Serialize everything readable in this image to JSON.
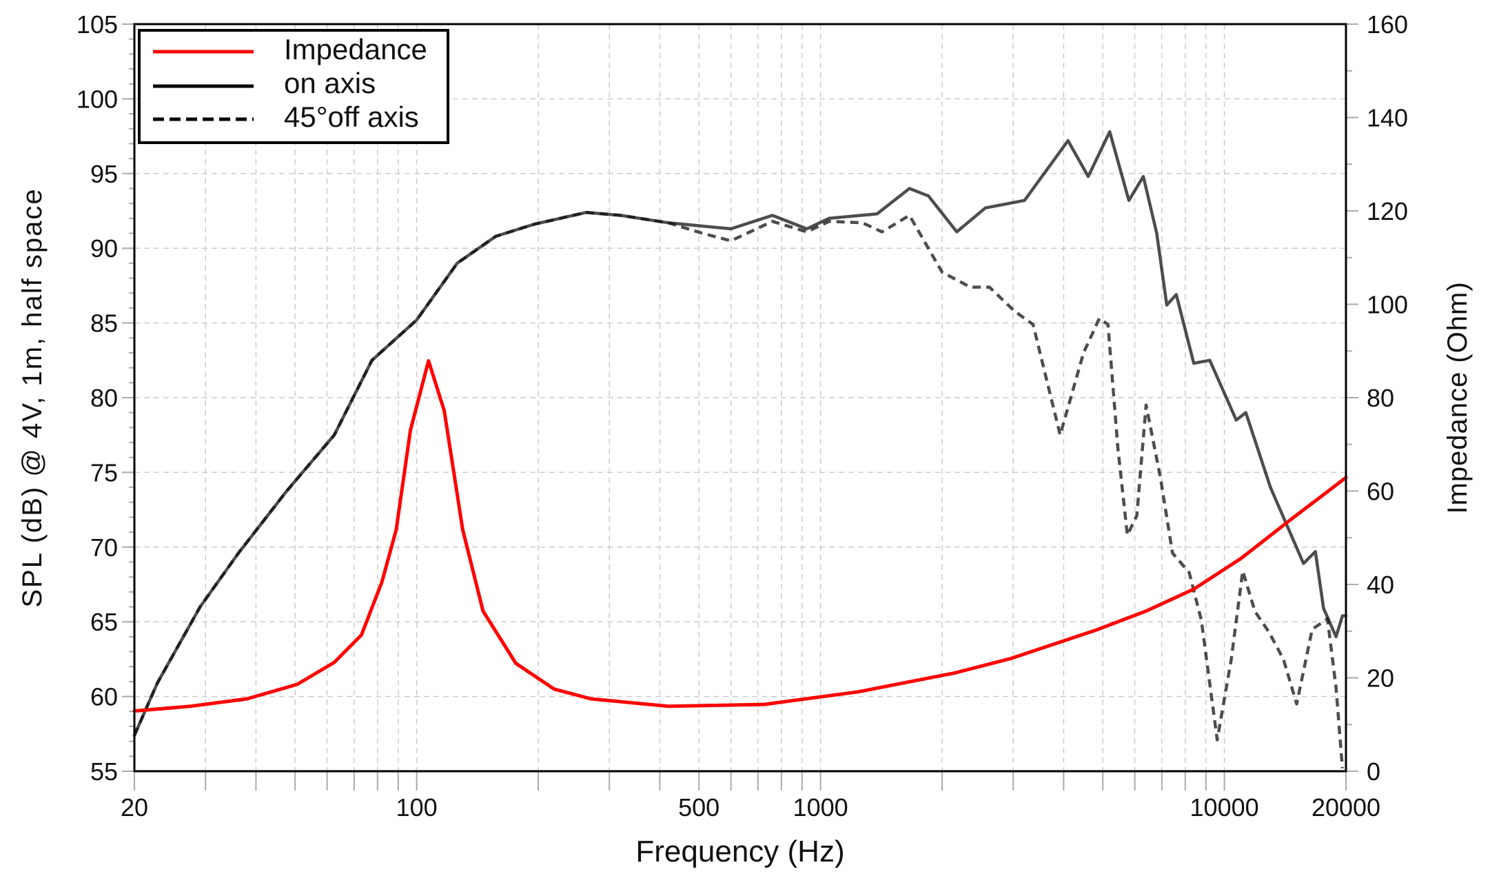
{
  "chart_data": {
    "type": "line",
    "xlabel": "Frequency (Hz)",
    "ylabel": "SPL (dB) @ 4V, 1m, half space",
    "y2label": "Impedance (Ohm)",
    "x_scale": "log",
    "xlim": [
      20,
      20000
    ],
    "ylim": [
      55,
      105
    ],
    "y2lim": [
      0,
      160
    ],
    "x_ticks": [
      20,
      100,
      500,
      1000,
      10000,
      20000
    ],
    "y_ticks": [
      55,
      60,
      65,
      70,
      75,
      80,
      85,
      90,
      95,
      100,
      105
    ],
    "y2_ticks": [
      0,
      20,
      40,
      60,
      80,
      100,
      120,
      140,
      160
    ],
    "grid": true,
    "legend": "top-left",
    "colors": {
      "impedance": "#ff0000",
      "on_axis": "#111111",
      "off_axis": "#111111"
    },
    "series": [
      {
        "name": "Impedance",
        "axis": "right",
        "style": "solid",
        "x": [
          20,
          27.5,
          38,
          50.6,
          62.5,
          73,
          82,
          89,
          96.5,
          107,
          117,
          130,
          146,
          176,
          219,
          270,
          420,
          725,
          1240,
          2140,
          2950,
          4800,
          6400,
          8400,
          11000,
          14500,
          20000
        ],
        "y": [
          12.9,
          13.9,
          15.5,
          18.6,
          23.3,
          29.2,
          40.5,
          51.7,
          73,
          87.9,
          77.2,
          51.7,
          34.3,
          23.1,
          17.6,
          15.5,
          13.9,
          14.3,
          17,
          21,
          24.1,
          30.2,
          34.3,
          39,
          45.6,
          53.7,
          62.9
        ]
      },
      {
        "name": "on axis",
        "axis": "left",
        "style": "solid",
        "x": [
          20,
          22.8,
          29.1,
          36.2,
          47.5,
          62.5,
          77.5,
          100,
          126,
          157,
          195,
          263,
          320,
          420,
          600,
          760,
          925,
          1050,
          1380,
          1660,
          1850,
          2175,
          2560,
          3200,
          4100,
          4600,
          5200,
          5800,
          6300,
          6800,
          7200,
          7600,
          8400,
          9200,
          10700,
          11300,
          13000,
          15700,
          16800,
          17600,
          18900,
          19600,
          20000
        ],
        "y": [
          57.4,
          60.9,
          66,
          69.6,
          73.7,
          77.5,
          82.5,
          85.2,
          89,
          90.8,
          91.6,
          92.4,
          92.2,
          91.7,
          91.3,
          92.2,
          91.3,
          92,
          92.3,
          94,
          93.5,
          91.1,
          92.7,
          93.2,
          97.2,
          94.8,
          97.8,
          93.2,
          94.8,
          91,
          86.2,
          86.9,
          82.3,
          82.5,
          78.5,
          79,
          74,
          68.9,
          69.7,
          65.9,
          64,
          65.4,
          65.4
        ]
      },
      {
        "name": "45°off axis",
        "axis": "left",
        "style": "dashed",
        "x": [
          20,
          22.8,
          29.1,
          36.2,
          47.5,
          62.5,
          77.5,
          100,
          126,
          157,
          195,
          263,
          320,
          420,
          510,
          600,
          760,
          925,
          1050,
          1270,
          1420,
          1660,
          2000,
          2350,
          2620,
          3020,
          3360,
          3920,
          4480,
          4900,
          5150,
          5450,
          5750,
          6070,
          6400,
          6940,
          7440,
          8180,
          8770,
          9600,
          10400,
          11100,
          11900,
          12900,
          14000,
          15100,
          16500,
          18000,
          18900,
          19600
        ],
        "y": [
          57.4,
          60.9,
          66,
          69.6,
          73.7,
          77.5,
          82.5,
          85.2,
          89,
          90.8,
          91.6,
          92.4,
          92.2,
          91.7,
          91,
          90.5,
          91.8,
          91.1,
          91.8,
          91.7,
          91.1,
          92.2,
          88.4,
          87.4,
          87.4,
          85.8,
          84.9,
          77.5,
          83,
          85.3,
          84.9,
          76.6,
          70.8,
          72.1,
          79.5,
          74.7,
          69.6,
          68.3,
          65.1,
          57.1,
          62.5,
          68.4,
          65.7,
          64.3,
          62.5,
          59.5,
          64.5,
          65.2,
          60.6,
          55.2
        ]
      }
    ]
  }
}
